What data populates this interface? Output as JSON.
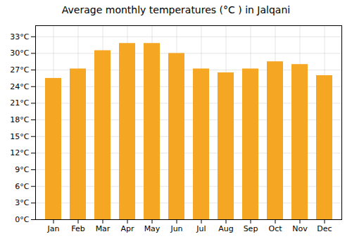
{
  "chart_data": {
    "type": "bar",
    "title": "Average monthly temperatures (°C ) in Jalqani",
    "categories": [
      "Jan",
      "Feb",
      "Mar",
      "Apr",
      "May",
      "Jun",
      "Jul",
      "Aug",
      "Sep",
      "Oct",
      "Nov",
      "Dec"
    ],
    "values": [
      25.5,
      27.2,
      30.5,
      31.8,
      31.8,
      30.0,
      27.2,
      26.5,
      27.2,
      28.5,
      28.0,
      26.0
    ],
    "color": "#F5A623",
    "ylim": [
      0,
      35
    ],
    "yticks": [
      {
        "value": 0,
        "label": "0°C"
      },
      {
        "value": 3,
        "label": "3°C"
      },
      {
        "value": 6,
        "label": "6°C"
      },
      {
        "value": 9,
        "label": "9°C"
      },
      {
        "value": 12,
        "label": "12°C"
      },
      {
        "value": 15,
        "label": "15°C"
      },
      {
        "value": 18,
        "label": "18°C"
      },
      {
        "value": 21,
        "label": "21°C"
      },
      {
        "value": 24,
        "label": "24°C"
      },
      {
        "value": 27,
        "label": "27°C"
      },
      {
        "value": 30,
        "label": "30°C"
      },
      {
        "value": 33,
        "label": "33°C"
      }
    ],
    "grid": true
  }
}
